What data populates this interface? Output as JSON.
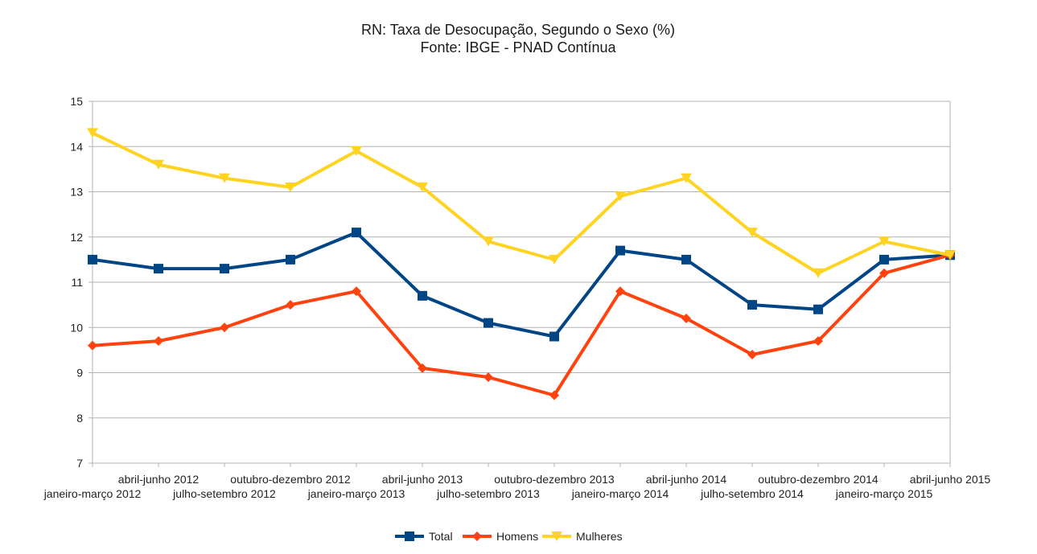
{
  "chart_data": {
    "type": "line",
    "title": "RN: Taxa de Desocupação, Segundo o Sexo (%)",
    "subtitle": "Fonte: IBGE - PNAD Contínua",
    "xlabel": "",
    "ylabel": "",
    "ylim": [
      7,
      15
    ],
    "yticks": [
      "7",
      "8",
      "9",
      "10",
      "11",
      "12",
      "13",
      "14",
      "15"
    ],
    "grid": true,
    "legend_position": "bottom",
    "categories": [
      "janeiro-março 2012",
      "abril-junho 2012",
      "julho-setembro 2012",
      "outubro-dezembro 2012",
      "janeiro-março 2013",
      "abril-junho 2013",
      "julho-setembro 2013",
      "outubro-dezembro 2013",
      "janeiro-março 2014",
      "abril-junho 2014",
      "julho-setembro 2014",
      "outubro-dezembro 2014",
      "janeiro-março 2015",
      "abril-junho 2015"
    ],
    "series": [
      {
        "name": "Total",
        "color": "#004586",
        "marker": "square",
        "values": [
          11.5,
          11.3,
          11.3,
          11.5,
          12.1,
          10.7,
          10.1,
          9.8,
          11.7,
          11.5,
          10.5,
          10.4,
          11.5,
          11.6
        ]
      },
      {
        "name": "Homens",
        "color": "#ff420e",
        "marker": "diamond",
        "values": [
          9.6,
          9.7,
          10.0,
          10.5,
          10.8,
          9.1,
          8.9,
          8.5,
          10.8,
          10.2,
          9.4,
          9.7,
          11.2,
          11.6
        ]
      },
      {
        "name": "Mulheres",
        "color": "#ffd320",
        "marker": "triangle-down",
        "values": [
          14.3,
          13.6,
          13.3,
          13.1,
          13.9,
          13.1,
          11.9,
          11.5,
          12.9,
          13.3,
          12.1,
          11.2,
          11.9,
          11.6
        ]
      }
    ]
  }
}
